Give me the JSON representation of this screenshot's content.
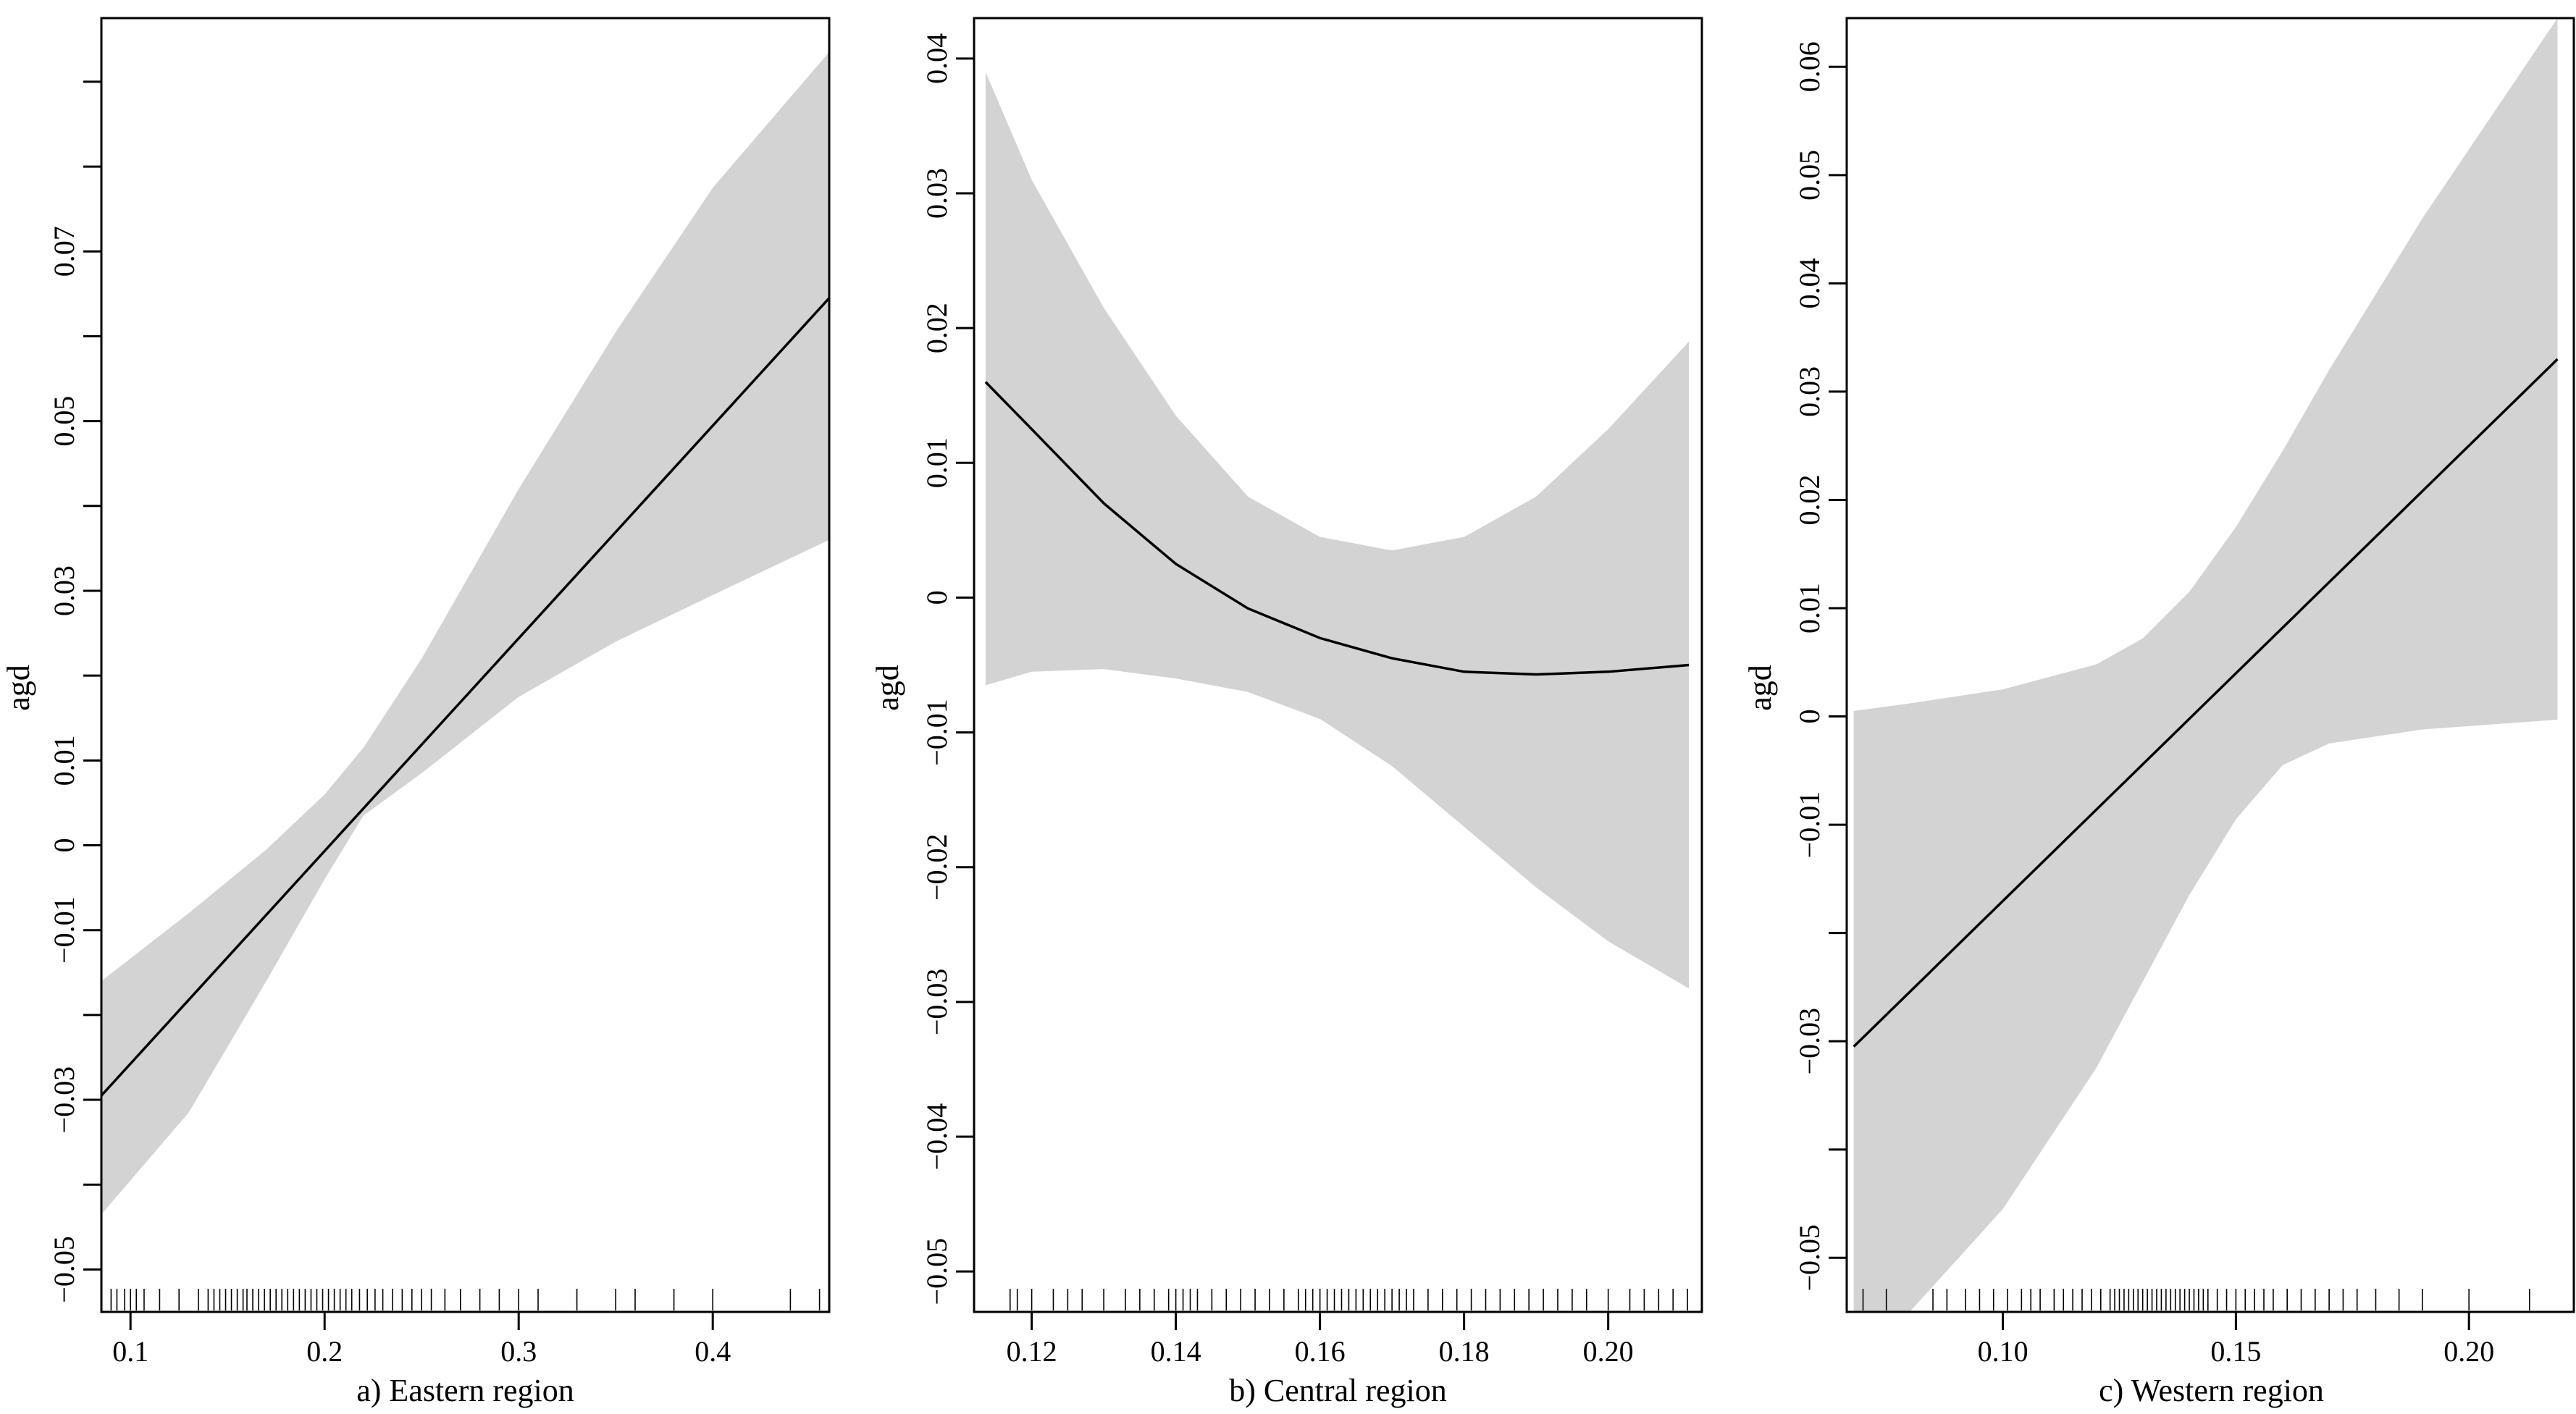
{
  "chart_data": [
    {
      "type": "line",
      "title": "",
      "xlabel": "a) Eastern region",
      "ylabel": "agd",
      "xlim": [
        0.085,
        0.46
      ],
      "ylim": [
        -0.055,
        0.0975
      ],
      "x_ticks": [
        0.1,
        0.2,
        0.3,
        0.4
      ],
      "x_tick_labels": [
        "0.1",
        "0.2",
        "0.3",
        "0.4"
      ],
      "y_ticks": [
        -0.05,
        -0.04,
        -0.03,
        -0.02,
        -0.01,
        0,
        0.01,
        0.02,
        0.03,
        0.04,
        0.05,
        0.06,
        0.07,
        0.08,
        0.09
      ],
      "y_tick_labels": [
        "−0.05",
        "",
        "−0.03",
        "",
        "−0.01",
        "0",
        "0.01",
        "",
        "0.03",
        "",
        "0.05",
        "",
        "0.07",
        "",
        ""
      ],
      "series": [
        {
          "name": "fit",
          "x": [
            0.085,
            0.46
          ],
          "y": [
            -0.0295,
            0.0645
          ]
        }
      ],
      "band": {
        "name": "confidence band",
        "x": [
          0.085,
          0.13,
          0.17,
          0.2,
          0.22,
          0.25,
          0.3,
          0.35,
          0.4,
          0.46
        ],
        "lower": [
          -0.0435,
          -0.0315,
          -0.016,
          -0.004,
          0.0035,
          0.0085,
          0.0175,
          0.024,
          0.0295,
          0.036
        ],
        "upper": [
          -0.016,
          -0.008,
          -0.0005,
          0.006,
          0.0115,
          0.022,
          0.042,
          0.0605,
          0.0775,
          0.0935
        ]
      },
      "rug": [
        0.09,
        0.093,
        0.097,
        0.1,
        0.103,
        0.107,
        0.115,
        0.125,
        0.135,
        0.14,
        0.143,
        0.146,
        0.149,
        0.152,
        0.155,
        0.158,
        0.16,
        0.163,
        0.166,
        0.169,
        0.172,
        0.175,
        0.178,
        0.181,
        0.184,
        0.187,
        0.19,
        0.193,
        0.196,
        0.199,
        0.202,
        0.205,
        0.208,
        0.211,
        0.214,
        0.218,
        0.222,
        0.226,
        0.23,
        0.235,
        0.24,
        0.245,
        0.25,
        0.255,
        0.262,
        0.27,
        0.28,
        0.29,
        0.3,
        0.31,
        0.33,
        0.35,
        0.36,
        0.38,
        0.4,
        0.44,
        0.455
      ]
    },
    {
      "type": "line",
      "title": "",
      "xlabel": "b) Central region",
      "ylabel": "agd",
      "xlim": [
        0.112,
        0.213
      ],
      "ylim": [
        -0.053,
        0.043
      ],
      "x_ticks": [
        0.12,
        0.14,
        0.16,
        0.18,
        0.2
      ],
      "x_tick_labels": [
        "0.12",
        "0.14",
        "0.16",
        "0.18",
        "0.20"
      ],
      "y_ticks": [
        -0.05,
        -0.04,
        -0.03,
        -0.02,
        -0.01,
        0,
        0.01,
        0.02,
        0.03,
        0.04
      ],
      "y_tick_labels": [
        "−0.05",
        "−0.04",
        "−0.03",
        "−0.02",
        "−0.01",
        "0",
        "0.01",
        "0.02",
        "0.03",
        "0.04"
      ],
      "series": [
        {
          "name": "fit",
          "x": [
            0.1136,
            0.12,
            0.13,
            0.14,
            0.15,
            0.16,
            0.17,
            0.18,
            0.19,
            0.2,
            0.2112
          ],
          "y": [
            0.016,
            0.0125,
            0.007,
            0.0025,
            -0.0008,
            -0.003,
            -0.0045,
            -0.0055,
            -0.0057,
            -0.0055,
            -0.005
          ]
        }
      ],
      "band": {
        "name": "confidence band",
        "x": [
          0.1136,
          0.12,
          0.13,
          0.14,
          0.15,
          0.16,
          0.17,
          0.18,
          0.19,
          0.2,
          0.2112
        ],
        "lower": [
          -0.0065,
          -0.0055,
          -0.0053,
          -0.006,
          -0.007,
          -0.009,
          -0.0125,
          -0.017,
          -0.0215,
          -0.0255,
          -0.029
        ],
        "upper": [
          0.039,
          0.031,
          0.0215,
          0.0135,
          0.0075,
          0.0045,
          0.0035,
          0.0045,
          0.0075,
          0.0125,
          0.019
        ]
      },
      "rug": [
        0.117,
        0.118,
        0.12,
        0.123,
        0.125,
        0.127,
        0.13,
        0.133,
        0.135,
        0.137,
        0.139,
        0.14,
        0.141,
        0.142,
        0.143,
        0.145,
        0.147,
        0.149,
        0.151,
        0.153,
        0.155,
        0.157,
        0.158,
        0.159,
        0.16,
        0.161,
        0.162,
        0.163,
        0.164,
        0.165,
        0.166,
        0.167,
        0.168,
        0.169,
        0.17,
        0.171,
        0.172,
        0.173,
        0.175,
        0.177,
        0.179,
        0.181,
        0.183,
        0.185,
        0.187,
        0.189,
        0.191,
        0.193,
        0.195,
        0.197,
        0.2,
        0.203,
        0.205,
        0.207,
        0.209,
        0.211
      ]
    },
    {
      "type": "line",
      "title": "",
      "xlabel": "c) Western region",
      "ylabel": "agd",
      "xlim": [
        0.0665,
        0.2225
      ],
      "ylim": [
        -0.055,
        0.0645
      ],
      "x_ticks": [
        0.1,
        0.15,
        0.2
      ],
      "x_tick_labels": [
        "0.10",
        "0.15",
        "0.20"
      ],
      "y_ticks": [
        -0.05,
        -0.04,
        -0.03,
        -0.02,
        -0.01,
        0,
        0.01,
        0.02,
        0.03,
        0.04,
        0.05,
        0.06
      ],
      "y_tick_labels": [
        "−0.05",
        "",
        "−0.03",
        "",
        "−0.01",
        "0",
        "0.01",
        "0.02",
        "0.03",
        "0.04",
        "0.05",
        "0.06"
      ],
      "series": [
        {
          "name": "fit",
          "x": [
            0.068,
            0.219
          ],
          "y": [
            -0.0305,
            0.033
          ]
        }
      ],
      "band": {
        "name": "confidence band",
        "x": [
          0.068,
          0.08,
          0.1,
          0.12,
          0.13,
          0.14,
          0.15,
          0.16,
          0.17,
          0.19,
          0.219
        ],
        "lower": [
          -0.055,
          -0.055,
          -0.0455,
          -0.0325,
          -0.0245,
          -0.0165,
          -0.0095,
          -0.0045,
          -0.0025,
          -0.0012,
          -0.0003
        ],
        "upper": [
          0.0005,
          0.0012,
          0.0025,
          0.0048,
          0.0072,
          0.0115,
          0.0175,
          0.0245,
          0.032,
          0.046,
          0.0645
        ]
      },
      "rug": [
        0.07,
        0.075,
        0.085,
        0.088,
        0.092,
        0.095,
        0.098,
        0.101,
        0.104,
        0.106,
        0.108,
        0.111,
        0.113,
        0.115,
        0.117,
        0.119,
        0.121,
        0.123,
        0.124,
        0.125,
        0.126,
        0.127,
        0.128,
        0.129,
        0.13,
        0.131,
        0.132,
        0.133,
        0.134,
        0.135,
        0.136,
        0.137,
        0.138,
        0.139,
        0.14,
        0.141,
        0.142,
        0.143,
        0.144,
        0.146,
        0.148,
        0.15,
        0.152,
        0.154,
        0.156,
        0.158,
        0.161,
        0.164,
        0.167,
        0.17,
        0.173,
        0.176,
        0.18,
        0.185,
        0.19,
        0.2,
        0.213
      ]
    }
  ],
  "colors": {
    "band": "#d3d3d3",
    "line": "#000000",
    "axis": "#000000"
  }
}
